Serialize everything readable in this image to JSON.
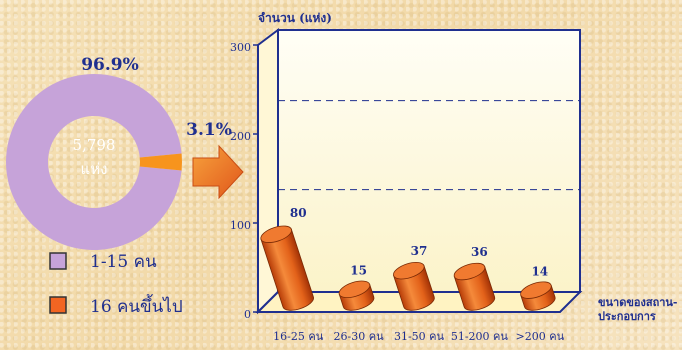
{
  "chart_data": [
    {
      "type": "pie",
      "labels": [
        "1-15 คน",
        "16 คนขึ้นไป"
      ],
      "values": [
        96.9,
        3.1
      ],
      "value_labels": [
        "96.9%",
        "3.1%"
      ],
      "center_value": "5,798",
      "center_unit": "แห่ง",
      "colors": [
        "#c6a3d9",
        "#f7941d"
      ],
      "legend": [
        {
          "label": "1-15 คน",
          "color": "#c6a3d9"
        },
        {
          "label": "16 คนขึ้นไป",
          "color": "#f26522"
        }
      ]
    },
    {
      "type": "bar",
      "ylabel": "จำนวน (แห่ง)",
      "xlabel": "ขนาดของสถาน-ประกอบการ",
      "xlabel_lines": [
        "ขนาดของสถาน-",
        "ประกอบการ"
      ],
      "categories": [
        "16-25 คน",
        "26-30 คน",
        "31-50 คน",
        "51-200 คน",
        ">200 คน"
      ],
      "values": [
        80,
        15,
        37,
        36,
        14
      ],
      "value_labels": [
        "80",
        "15",
        "37",
        "36",
        "14"
      ],
      "ylim": [
        0,
        300
      ],
      "yticks": [
        "0",
        "100",
        "200",
        "300"
      ],
      "reference_lines": [
        1.15,
        2.15
      ],
      "bar_color": "#e8601c",
      "wall_color": "#fffde8",
      "frame_color": "#1f2f8f"
    }
  ]
}
